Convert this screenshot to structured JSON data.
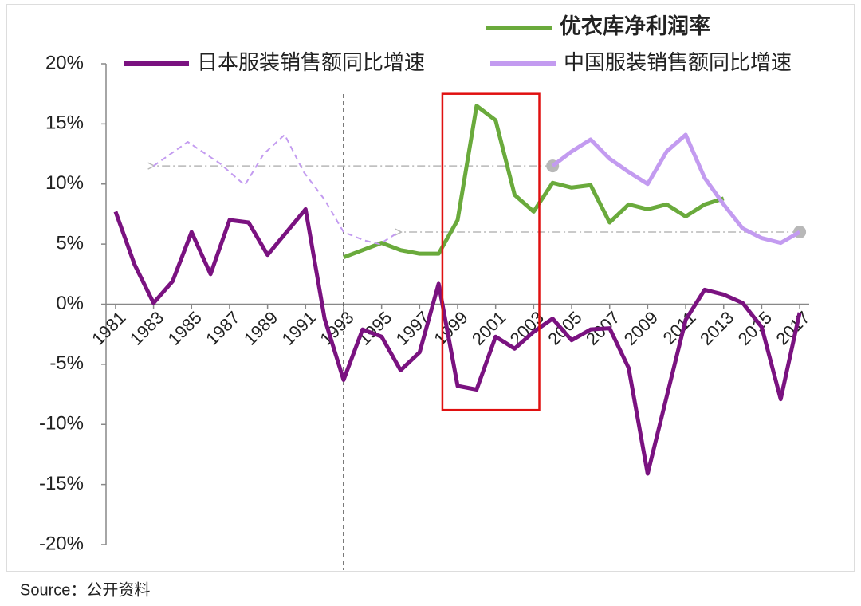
{
  "chart_data": {
    "type": "line",
    "source": "Source：公开资料",
    "xlim": [
      1980.5,
      2017.5
    ],
    "xticks": [
      1981,
      1983,
      1985,
      1987,
      1989,
      1991,
      1993,
      1995,
      1997,
      1999,
      2001,
      2003,
      2005,
      2007,
      2009,
      2011,
      2013,
      2015,
      2017
    ],
    "ylim": [
      -20,
      20
    ],
    "yticks": [
      {
        "value": -20,
        "label": "-20%"
      },
      {
        "value": -15,
        "label": "-15%"
      },
      {
        "value": -10,
        "label": "-10%"
      },
      {
        "value": -5,
        "label": "-5%"
      },
      {
        "value": 0,
        "label": "0%"
      },
      {
        "value": 5,
        "label": "5%"
      },
      {
        "value": 10,
        "label": "10%"
      },
      {
        "value": 15,
        "label": "15%"
      },
      {
        "value": 20,
        "label": "20%"
      }
    ],
    "divider_x": 1993,
    "highlight": {
      "x": [
        1998.2,
        2003.3
      ],
      "y": [
        17.5,
        -8.8
      ],
      "color": "#e01010"
    },
    "guides": [
      {
        "x": [
          2004,
          1983
        ],
        "y": 11.5,
        "color": "#b8b8b8"
      },
      {
        "x": [
          2017,
          1996
        ],
        "y": 6,
        "color": "#b8b8b8"
      }
    ],
    "series": [
      {
        "name": "优衣库净利润率",
        "color": "#6aaa3c",
        "x": [
          1993,
          1994,
          1995,
          1996,
          1997,
          1998,
          1999,
          2000,
          2001,
          2002,
          2003,
          2004,
          2005,
          2006,
          2007,
          2008,
          2009,
          2010,
          2011,
          2012,
          2013
        ],
        "values": [
          3.9,
          4.5,
          5.1,
          4.5,
          4.2,
          4.2,
          7.0,
          16.5,
          15.3,
          9.1,
          7.7,
          10.1,
          9.7,
          9.9,
          6.8,
          8.3,
          7.9,
          8.3,
          7.3,
          8.3,
          8.8
        ]
      },
      {
        "name": "日本服装销售额同比增速",
        "color": "#7a1280",
        "x": [
          1981,
          1982,
          1983,
          1984,
          1985,
          1986,
          1987,
          1988,
          1989,
          1990,
          1991,
          1992,
          1993,
          1994,
          1995,
          1996,
          1997,
          1998,
          1999,
          2000,
          2001,
          2002,
          2003,
          2004,
          2005,
          2006,
          2007,
          2008,
          2009,
          2010,
          2011,
          2012,
          2013,
          2014,
          2015,
          2016,
          2017
        ],
        "values": [
          7.7,
          3.3,
          0.1,
          1.9,
          6.0,
          2.5,
          7.0,
          6.8,
          4.1,
          6.0,
          7.9,
          -1.2,
          -6.3,
          -2.1,
          -2.7,
          -5.5,
          -4.0,
          1.7,
          -6.8,
          -7.1,
          -2.7,
          -3.7,
          -2.3,
          -1.2,
          -3.0,
          -2.1,
          -2.0,
          -5.3,
          -14.1,
          -7.7,
          -1.3,
          1.2,
          0.8,
          0.1,
          -1.9,
          -7.9,
          -0.7
        ]
      },
      {
        "name": "中国服装销售额同比增速",
        "color": "#c39bf0",
        "x": [
          2004,
          2005,
          2006,
          2007,
          2008,
          2009,
          2010,
          2011,
          2012,
          2013,
          2014,
          2015,
          2016,
          2017
        ],
        "values": [
          11.5,
          12.7,
          13.7,
          12.1,
          11.0,
          10.0,
          12.7,
          14.1,
          10.5,
          8.3,
          6.3,
          5.5,
          5.1,
          6.0
        ]
      },
      {
        "color": "#c39bf0",
        "dash": true,
        "x": [
          1983.0,
          1984.8,
          1986.5,
          1987.8,
          1988.8,
          1989.9,
          1990.9,
          1992.0,
          1993.0,
          1994.1,
          1994.9,
          1995.9
        ],
        "values": [
          11.5,
          13.5,
          11.7,
          9.9,
          12.5,
          14.1,
          11.0,
          8.7,
          6.0,
          5.3,
          5.0,
          6.0
        ]
      }
    ]
  }
}
